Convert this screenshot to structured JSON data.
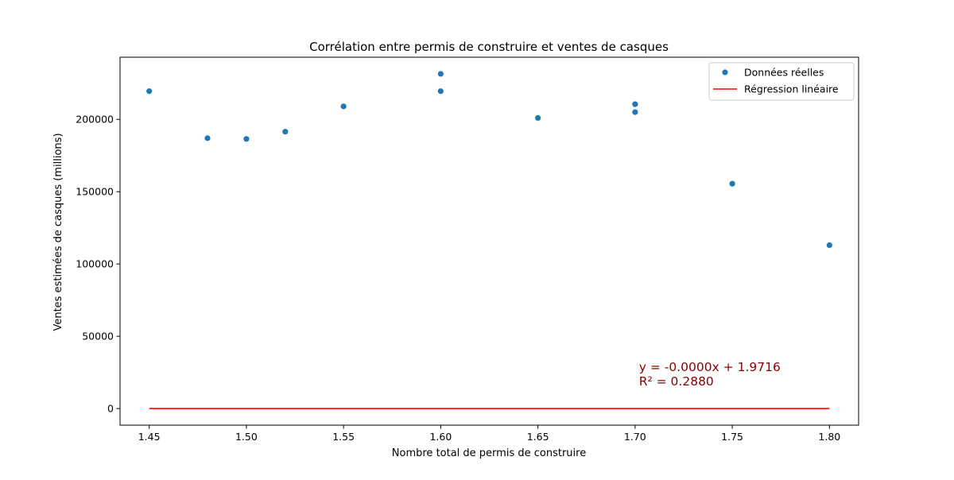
{
  "chart_data": {
    "type": "scatter",
    "title": "Corrélation entre permis de construire et ventes de casques",
    "xlabel": "Nombre total de permis de construire",
    "ylabel": "Ventes estimées de casques (millions)",
    "xlim": [
      1.435,
      1.815
    ],
    "ylim": [
      -11500,
      243000
    ],
    "xticks": [
      1.45,
      1.5,
      1.55,
      1.6,
      1.65,
      1.7,
      1.75,
      1.8
    ],
    "xtick_labels": [
      "1.45",
      "1.50",
      "1.55",
      "1.60",
      "1.65",
      "1.70",
      "1.75",
      "1.80"
    ],
    "yticks": [
      0,
      50000,
      100000,
      150000,
      200000
    ],
    "ytick_labels": [
      "0",
      "50000",
      "100000",
      "150000",
      "200000"
    ],
    "grid": false,
    "legend_position": "top-right",
    "series": [
      {
        "name": "Données réelles",
        "kind": "scatter",
        "color": "#1f77b4",
        "points": [
          {
            "x": 1.45,
            "y": 219500
          },
          {
            "x": 1.48,
            "y": 187000
          },
          {
            "x": 1.5,
            "y": 186500
          },
          {
            "x": 1.52,
            "y": 191500
          },
          {
            "x": 1.55,
            "y": 209000
          },
          {
            "x": 1.6,
            "y": 231500
          },
          {
            "x": 1.6,
            "y": 219500
          },
          {
            "x": 1.65,
            "y": 201000
          },
          {
            "x": 1.7,
            "y": 210500
          },
          {
            "x": 1.7,
            "y": 205000
          },
          {
            "x": 1.75,
            "y": 155500
          },
          {
            "x": 1.8,
            "y": 113000
          }
        ]
      },
      {
        "name": "Régression linéaire",
        "kind": "line",
        "color": "#ff0000",
        "points": [
          {
            "x": 1.45,
            "y": 0
          },
          {
            "x": 1.8,
            "y": 0
          }
        ]
      }
    ],
    "annotations": [
      {
        "text": "y = -0.0000x + 1.9716",
        "x": 1.702,
        "y": 26000,
        "color": "#8b0000"
      },
      {
        "text": "R² = 0.2880",
        "x": 1.702,
        "y": 16000,
        "color": "#8b0000"
      }
    ]
  }
}
